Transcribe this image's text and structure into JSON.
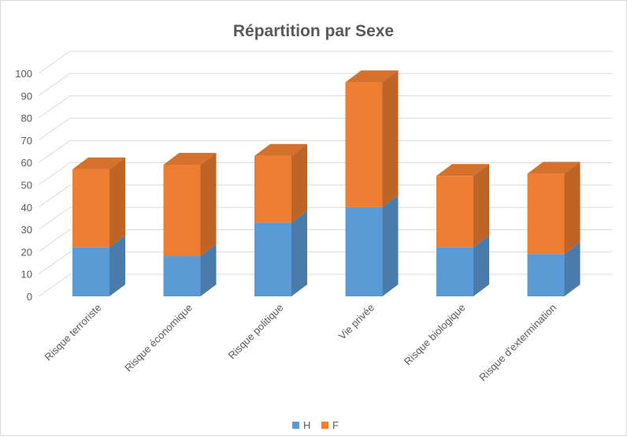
{
  "chart_data": {
    "type": "bar",
    "stacked": true,
    "three_d": true,
    "title": "Répartition par Sexe",
    "xlabel": "",
    "ylabel": "",
    "categories": [
      "Risque terroriste",
      "Risque économique",
      "Risque politique",
      "Vie privée",
      "Risque biologique",
      "Risque d'extermination"
    ],
    "series": [
      {
        "name": "H",
        "values": [
          22,
          18,
          33,
          40,
          22,
          19
        ],
        "color": "#5B9BD5"
      },
      {
        "name": "F",
        "values": [
          35,
          41,
          30,
          56,
          32,
          36
        ],
        "color": "#ED7D31"
      }
    ],
    "ylim": [
      0,
      100
    ],
    "y_ticks": [
      "0",
      "10",
      "20",
      "30",
      "40",
      "50",
      "60",
      "70",
      "80",
      "90",
      "100"
    ],
    "grid": true,
    "legend": "bottom"
  }
}
